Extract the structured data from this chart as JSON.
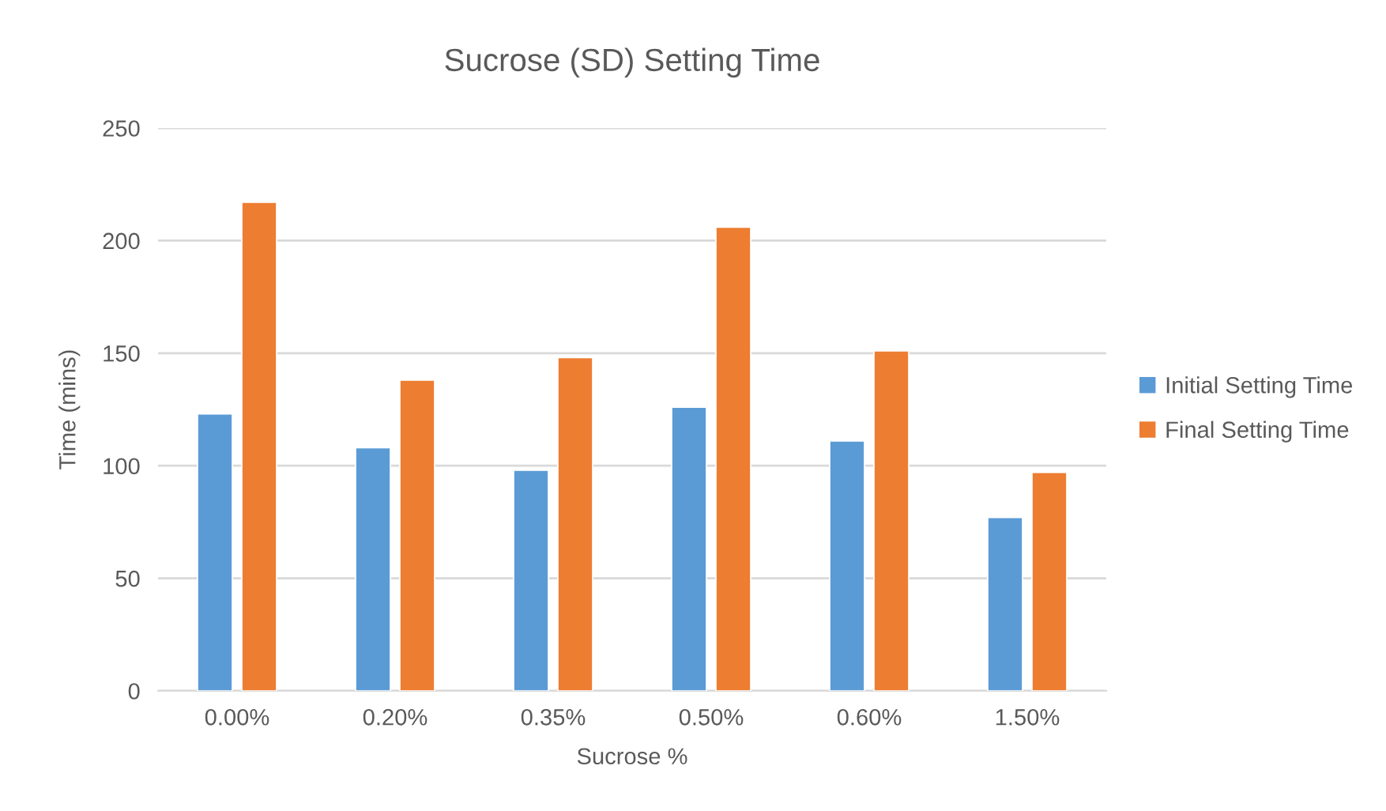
{
  "chart_data": {
    "type": "bar",
    "title": "Sucrose (SD) Setting Time",
    "xlabel": "Sucrose %",
    "ylabel": "Time (mins)",
    "categories": [
      "0.00%",
      "0.20%",
      "0.35%",
      "0.50%",
      "0.60%",
      "1.50%"
    ],
    "series": [
      {
        "name": "Initial Setting Time",
        "color": "#5b9bd5",
        "values": [
          123,
          108,
          98,
          126,
          111,
          77
        ]
      },
      {
        "name": "Final Setting Time",
        "color": "#ed7d31",
        "values": [
          217,
          138,
          148,
          206,
          151,
          97
        ]
      }
    ],
    "ylim": [
      0,
      250
    ],
    "yticks": [
      0,
      50,
      100,
      150,
      200,
      250
    ],
    "grid": "y",
    "legend": "right"
  }
}
